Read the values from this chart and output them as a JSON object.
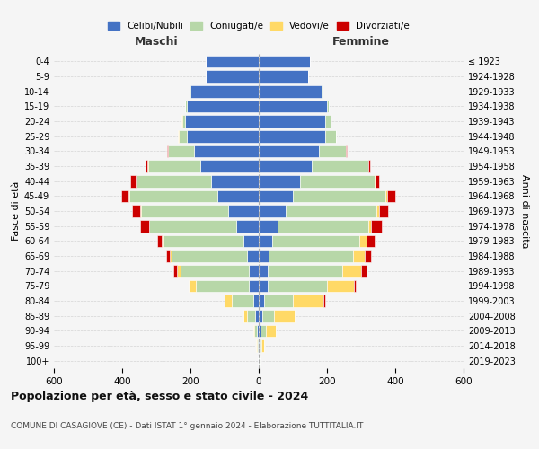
{
  "age_groups": [
    "0-4",
    "5-9",
    "10-14",
    "15-19",
    "20-24",
    "25-29",
    "30-34",
    "35-39",
    "40-44",
    "45-49",
    "50-54",
    "55-59",
    "60-64",
    "65-69",
    "70-74",
    "75-79",
    "80-84",
    "85-89",
    "90-94",
    "95-99",
    "100+"
  ],
  "birth_years": [
    "2019-2023",
    "2014-2018",
    "2009-2013",
    "2004-2008",
    "1999-2003",
    "1994-1998",
    "1989-1993",
    "1984-1988",
    "1979-1983",
    "1974-1978",
    "1969-1973",
    "1964-1968",
    "1959-1963",
    "1954-1958",
    "1949-1953",
    "1944-1948",
    "1939-1943",
    "1934-1938",
    "1929-1933",
    "1924-1928",
    "≤ 1923"
  ],
  "maschi": {
    "celibi": [
      155,
      155,
      200,
      210,
      215,
      210,
      190,
      170,
      140,
      120,
      90,
      65,
      45,
      35,
      30,
      30,
      15,
      10,
      5,
      3,
      2
    ],
    "coniugati": [
      1,
      1,
      2,
      5,
      10,
      25,
      75,
      155,
      220,
      260,
      255,
      255,
      235,
      220,
      200,
      155,
      65,
      25,
      8,
      3,
      1
    ],
    "vedovi": [
      0,
      0,
      0,
      0,
      1,
      1,
      1,
      1,
      1,
      2,
      2,
      2,
      3,
      5,
      10,
      20,
      20,
      10,
      3,
      1,
      0
    ],
    "divorziati": [
      0,
      0,
      0,
      0,
      1,
      2,
      2,
      5,
      15,
      20,
      25,
      25,
      15,
      10,
      10,
      0,
      0,
      0,
      0,
      0,
      0
    ]
  },
  "femmine": {
    "nubili": [
      150,
      145,
      185,
      200,
      195,
      195,
      175,
      155,
      120,
      100,
      80,
      55,
      40,
      30,
      25,
      25,
      15,
      10,
      5,
      3,
      1
    ],
    "coniugate": [
      1,
      1,
      2,
      5,
      15,
      30,
      80,
      165,
      220,
      270,
      265,
      265,
      255,
      245,
      220,
      175,
      85,
      35,
      15,
      5,
      1
    ],
    "vedove": [
      0,
      0,
      0,
      0,
      0,
      1,
      1,
      2,
      3,
      5,
      8,
      10,
      20,
      35,
      55,
      80,
      90,
      60,
      30,
      8,
      1
    ],
    "divorziate": [
      0,
      0,
      0,
      0,
      0,
      1,
      2,
      5,
      10,
      25,
      25,
      30,
      25,
      20,
      15,
      5,
      5,
      1,
      0,
      0,
      0
    ]
  },
  "colors": {
    "celibi_nubili": "#4472c4",
    "coniugati": "#b7d7a8",
    "vedovi": "#ffd966",
    "divorziati": "#cc0000"
  },
  "title": "Popolazione per età, sesso e stato civile - 2024",
  "subtitle": "COMUNE DI CASAGIOVE (CE) - Dati ISTAT 1° gennaio 2024 - Elaborazione TUTTITALIA.IT",
  "xlabel_left": "Maschi",
  "xlabel_right": "Femmine",
  "ylabel_left": "Fasce di età",
  "ylabel_right": "Anni di nascita",
  "xlim": 600,
  "bg_color": "#f5f5f5",
  "grid_color": "#cccccc"
}
